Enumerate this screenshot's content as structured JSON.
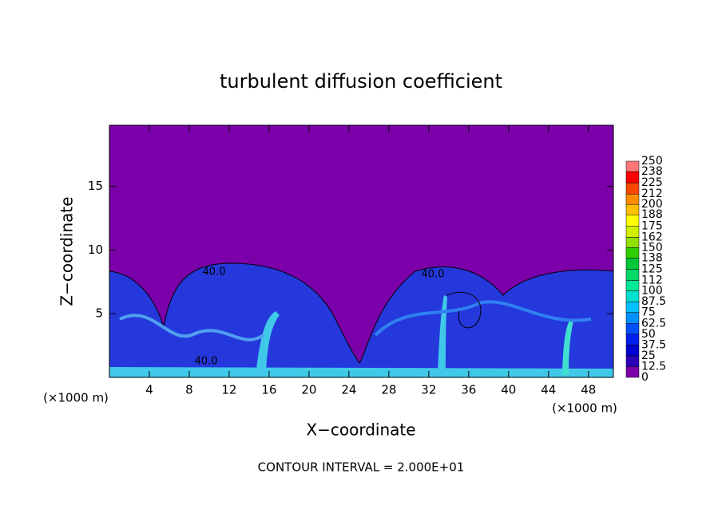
{
  "chart_data": {
    "type": "contour",
    "title": "turbulent diffusion coefficient",
    "xlabel": "X−coordinate",
    "ylabel": "Z−coordinate",
    "x_unit_left": "(×1000 m)",
    "x_unit_right": "(×1000 m)",
    "footer": "CONTOUR INTERVAL = 2.000E+01",
    "xlim": [
      0,
      50.5
    ],
    "ylim": [
      0,
      19.8
    ],
    "xticks": [
      4,
      8,
      12,
      16,
      20,
      24,
      28,
      32,
      36,
      40,
      44,
      48
    ],
    "yticks": [
      5,
      10,
      15
    ],
    "background_color": "#7b00aa",
    "contour_labels": [
      "40.0",
      "40.0",
      "40.0"
    ],
    "colorbar": {
      "levels": [
        0,
        12.5,
        25,
        37.5,
        50,
        62.5,
        75,
        87.5,
        100,
        112,
        125,
        138,
        150,
        162,
        175,
        188,
        200,
        212,
        225,
        238,
        250
      ],
      "colors": [
        "#7b00aa",
        "#2a00b8",
        "#0000d0",
        "#0020f0",
        "#0050ff",
        "#0090ff",
        "#00c0ff",
        "#00e0d0",
        "#00e898",
        "#00d868",
        "#00c838",
        "#30d000",
        "#90e000",
        "#d0f000",
        "#ffff00",
        "#ffc000",
        "#ff8c00",
        "#ff4800",
        "#ff0000",
        "#ff7878"
      ]
    }
  }
}
